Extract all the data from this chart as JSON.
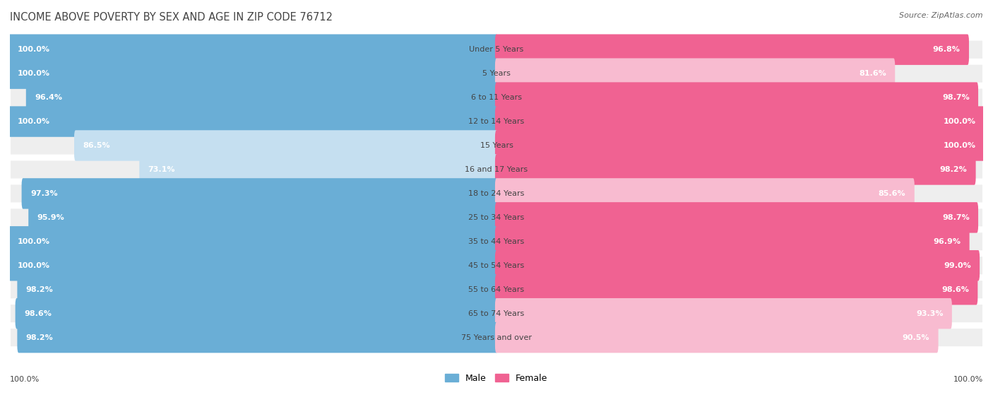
{
  "title": "INCOME ABOVE POVERTY BY SEX AND AGE IN ZIP CODE 76712",
  "source": "Source: ZipAtlas.com",
  "categories": [
    "Under 5 Years",
    "5 Years",
    "6 to 11 Years",
    "12 to 14 Years",
    "15 Years",
    "16 and 17 Years",
    "18 to 24 Years",
    "25 to 34 Years",
    "35 to 44 Years",
    "45 to 54 Years",
    "55 to 64 Years",
    "65 to 74 Years",
    "75 Years and over"
  ],
  "male": [
    100.0,
    100.0,
    96.4,
    100.0,
    86.5,
    73.1,
    97.3,
    95.9,
    100.0,
    100.0,
    98.2,
    98.6,
    98.2
  ],
  "female": [
    96.8,
    81.6,
    98.7,
    100.0,
    100.0,
    98.2,
    85.6,
    98.7,
    96.9,
    99.0,
    98.6,
    93.3,
    90.5
  ],
  "male_color": "#6aaed6",
  "male_color_light": "#c5dff0",
  "female_color": "#f06292",
  "female_color_light": "#f8bbd0",
  "background_color": "#ffffff",
  "row_bg_color": "#eeeeee",
  "title_fontsize": 10.5,
  "label_fontsize": 8,
  "category_fontsize": 8,
  "source_fontsize": 8
}
